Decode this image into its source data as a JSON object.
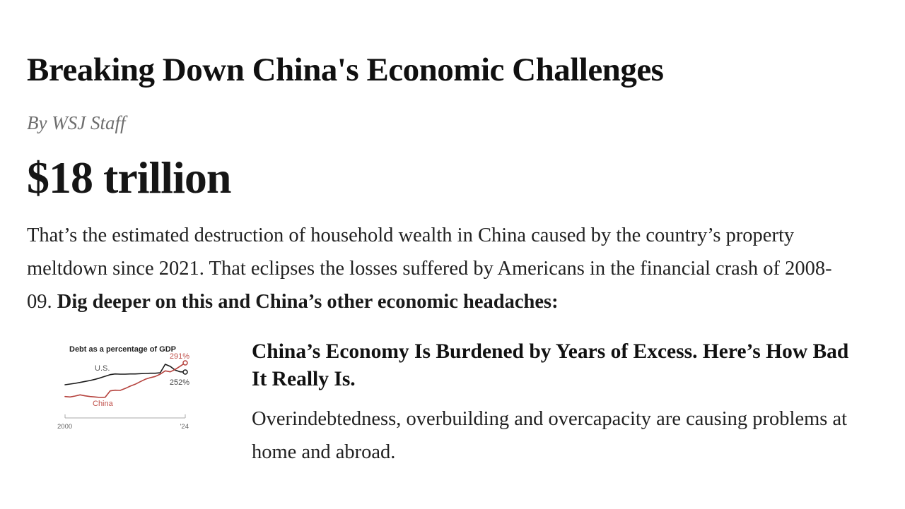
{
  "page": {
    "headline": "Breaking Down China's Economic Challenges",
    "byline": "By WSJ Staff",
    "big_number": "$18 trillion",
    "intro_regular": "That’s the estimated destruction of household wealth in China caused by the country’s property meltdown since 2021. That eclipses the losses suffered by Americans in the financial crash of 2008-09. ",
    "intro_bold": "Dig deeper on this and China’s other economic headaches:"
  },
  "related_article": {
    "headline": "China’s Economy Is Burdened by Years of Excess. Here’s How Bad It Really Is.",
    "description": "Overindebtedness, overbuilding and overcapacity are causing problems at home and abroad."
  },
  "chart_data": {
    "type": "line",
    "title": "Debt as a percentage of GDP",
    "x": [
      2000,
      2001,
      2002,
      2003,
      2004,
      2005,
      2006,
      2007,
      2008,
      2009,
      2010,
      2011,
      2012,
      2013,
      2014,
      2015,
      2016,
      2017,
      2018,
      2019,
      2020,
      2021,
      2022,
      2023,
      2024
    ],
    "series": [
      {
        "name": "U.S.",
        "color": "#1a1a1a",
        "end_label": "252%",
        "values": [
          198,
          201,
          204,
          208,
          212,
          216,
          221,
          227,
          234,
          241,
          244,
          243,
          243,
          244,
          244,
          245,
          246,
          247,
          247,
          249,
          285,
          276,
          260,
          253,
          252
        ]
      },
      {
        "name": "China",
        "color": "#b5413c",
        "end_label": "291%",
        "values": [
          148,
          146,
          150,
          155,
          151,
          148,
          146,
          144,
          145,
          172,
          175,
          174,
          182,
          192,
          200,
          211,
          221,
          228,
          233,
          243,
          257,
          253,
          263,
          277,
          291
        ]
      }
    ],
    "x_ticks": [
      "2000",
      "'24"
    ],
    "xlabel": "",
    "ylabel": "",
    "ylim": [
      130,
      300
    ],
    "grid": false,
    "legend_position": "inline-labels"
  },
  "colors": {
    "background": "#ffffff",
    "headline_text": "#101010",
    "body_text": "#222222",
    "byline_gray": "#6e6e6e",
    "chart_us_line": "#1a1a1a",
    "chart_china_line": "#b5413c",
    "chart_red_label": "#c0504a",
    "chart_axis": "#aaaaaa"
  }
}
